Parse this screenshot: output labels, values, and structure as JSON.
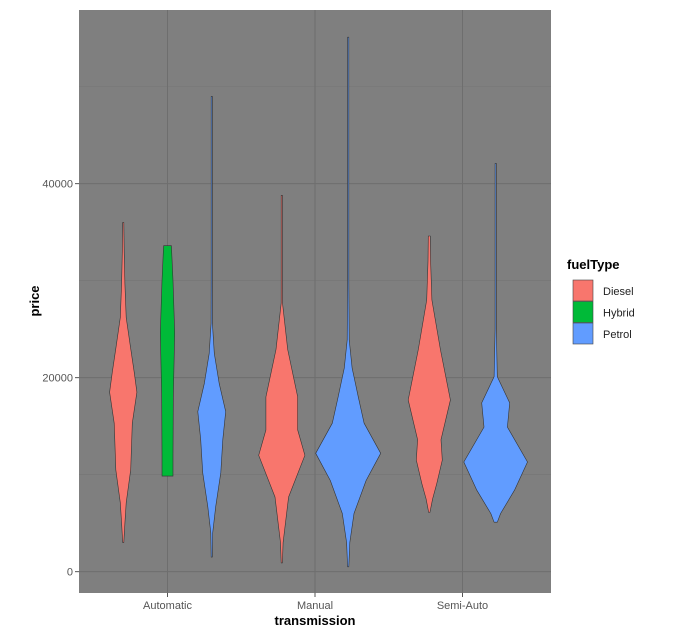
{
  "chart_data": {
    "type": "violin",
    "title": "",
    "xlabel": "transmission",
    "ylabel": "price",
    "categories": [
      "Automatic",
      "Manual",
      "Semi-Auto"
    ],
    "ylim": [
      -2200,
      57900
    ],
    "yticks": [
      0,
      20000,
      40000
    ],
    "yticklabels": [
      "0",
      "20000",
      "40000"
    ],
    "grid": true,
    "panel_background": "#7f7f7f",
    "legend": {
      "title": "fuelType",
      "placement": "right",
      "entries": [
        {
          "name": "Diesel",
          "color": "#F8766D"
        },
        {
          "name": "Hybrid",
          "color": "#00BA38"
        },
        {
          "name": "Petrol",
          "color": "#619CFF"
        }
      ]
    },
    "violins": [
      {
        "category": "Automatic",
        "fuelType": "Diesel",
        "profile": [
          [
            3000,
            0
          ],
          [
            5000,
            0.05
          ],
          [
            7100,
            0.09
          ],
          [
            10500,
            0.23
          ],
          [
            15300,
            0.28
          ],
          [
            18500,
            0.42
          ],
          [
            20500,
            0.34
          ],
          [
            23200,
            0.22
          ],
          [
            26200,
            0.09
          ],
          [
            29700,
            0.05
          ],
          [
            33000,
            0.03
          ],
          [
            36000,
            0
          ]
        ]
      },
      {
        "category": "Automatic",
        "fuelType": "Hybrid",
        "profile": [
          [
            9850,
            0.17
          ],
          [
            12000,
            0.17
          ],
          [
            18000,
            0.18
          ],
          [
            24600,
            0.22
          ],
          [
            30000,
            0.17
          ],
          [
            33600,
            0.12
          ]
        ]
      },
      {
        "category": "Automatic",
        "fuelType": "Petrol",
        "profile": [
          [
            1500,
            0
          ],
          [
            4000,
            0.03
          ],
          [
            6700,
            0.12
          ],
          [
            10200,
            0.28
          ],
          [
            13600,
            0.34
          ],
          [
            16500,
            0.43
          ],
          [
            19400,
            0.23
          ],
          [
            22500,
            0.08
          ],
          [
            25600,
            0.02
          ],
          [
            30000,
            0.01
          ],
          [
            49000,
            0
          ]
        ]
      },
      {
        "category": "Manual",
        "fuelType": "Diesel",
        "profile": [
          [
            900,
            0
          ],
          [
            3000,
            0.04
          ],
          [
            7700,
            0.21
          ],
          [
            12000,
            0.71
          ],
          [
            14600,
            0.49
          ],
          [
            18000,
            0.49
          ],
          [
            22900,
            0.18
          ],
          [
            27700,
            0.02
          ],
          [
            30000,
            0.01
          ],
          [
            38800,
            0
          ]
        ]
      },
      {
        "category": "Manual",
        "fuelType": "Petrol",
        "profile": [
          [
            500,
            0
          ],
          [
            3000,
            0.05
          ],
          [
            6000,
            0.18
          ],
          [
            9400,
            0.55
          ],
          [
            12200,
            1.0
          ],
          [
            15300,
            0.49
          ],
          [
            18000,
            0.31
          ],
          [
            21000,
            0.12
          ],
          [
            23900,
            0.03
          ],
          [
            30000,
            0.01
          ],
          [
            55100,
            0
          ]
        ]
      },
      {
        "category": "Semi-Auto",
        "fuelType": "Diesel",
        "profile": [
          [
            6100,
            0
          ],
          [
            7500,
            0.1
          ],
          [
            9100,
            0.23
          ],
          [
            11500,
            0.4
          ],
          [
            13600,
            0.36
          ],
          [
            17700,
            0.65
          ],
          [
            22900,
            0.34
          ],
          [
            28000,
            0.08
          ],
          [
            32000,
            0.04
          ],
          [
            34600,
            0.03
          ]
        ]
      },
      {
        "category": "Semi-Auto",
        "fuelType": "Petrol",
        "profile": [
          [
            5100,
            0.05
          ],
          [
            6000,
            0.15
          ],
          [
            8400,
            0.58
          ],
          [
            11300,
            0.98
          ],
          [
            14900,
            0.36
          ],
          [
            17400,
            0.43
          ],
          [
            20100,
            0.05
          ],
          [
            25000,
            0.01
          ],
          [
            42100,
            0
          ]
        ]
      }
    ]
  }
}
